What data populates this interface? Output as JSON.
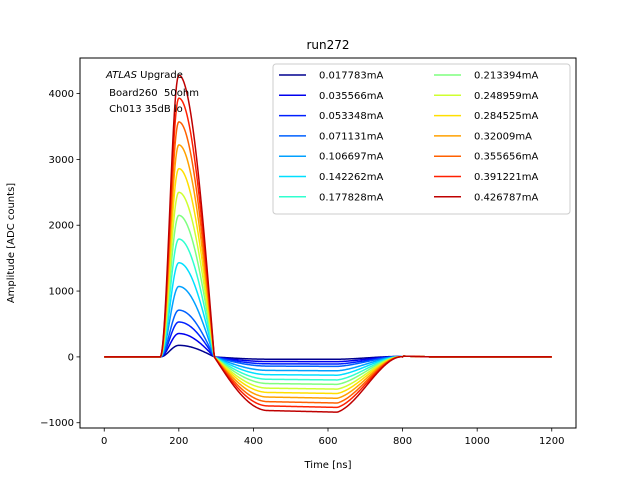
{
  "chart_data": {
    "type": "line",
    "title": "run272",
    "xlabel": "Time [ns]",
    "ylabel": "Amplitude [ADC counts]",
    "xlim": [
      -65,
      1265
    ],
    "ylim": [
      -1080,
      4540
    ],
    "xticks": [
      0,
      200,
      400,
      600,
      800,
      1000,
      1200
    ],
    "yticks": [
      -1000,
      0,
      1000,
      2000,
      3000,
      4000
    ],
    "legend_position": "top-right",
    "legend_columns": 2,
    "annotation": {
      "line1_italic": "ATLAS",
      "line1_rest": " Upgrade",
      "line2": " Board260  50ohm",
      "line3": " Ch013 35dB lo"
    },
    "pulse_shape": {
      "baseline": 0,
      "rise_start_ns": 150,
      "peak_time_ns": 200,
      "zero_cross_ns": 295,
      "undershoot_flat_ns": [
        440,
        625
      ],
      "recovery_end_ns": 800,
      "x_start_ns": 0,
      "x_end_ns": 1200
    },
    "series": [
      {
        "name": "0.017783mA",
        "color": "#00008f",
        "peak": 175,
        "undershoot": -35
      },
      {
        "name": "0.035566mA",
        "color": "#0000ef",
        "peak": 355,
        "undershoot": -70
      },
      {
        "name": "0.053348mA",
        "color": "#0020ff",
        "peak": 530,
        "undershoot": -105
      },
      {
        "name": "0.071131mA",
        "color": "#0060ff",
        "peak": 710,
        "undershoot": -140
      },
      {
        "name": "0.106697mA",
        "color": "#00a0ff",
        "peak": 1070,
        "undershoot": -205
      },
      {
        "name": "0.142262mA",
        "color": "#00dfff",
        "peak": 1430,
        "undershoot": -270
      },
      {
        "name": "0.177828mA",
        "color": "#30ffcf",
        "peak": 1790,
        "undershoot": -340
      },
      {
        "name": "0.213394mA",
        "color": "#7fff7f",
        "peak": 2150,
        "undershoot": -405
      },
      {
        "name": "0.248959mA",
        "color": "#cfff30",
        "peak": 2500,
        "undershoot": -475
      },
      {
        "name": "0.284525mA",
        "color": "#ffdf00",
        "peak": 2860,
        "undershoot": -540
      },
      {
        "name": "0.32009mA",
        "color": "#ffa000",
        "peak": 3220,
        "undershoot": -610
      },
      {
        "name": "0.355656mA",
        "color": "#ff6000",
        "peak": 3570,
        "undershoot": -680
      },
      {
        "name": "0.391221mA",
        "color": "#ff2000",
        "peak": 3930,
        "undershoot": -745
      },
      {
        "name": "0.426787mA",
        "color": "#bf0000",
        "peak": 4280,
        "undershoot": -815
      }
    ]
  }
}
